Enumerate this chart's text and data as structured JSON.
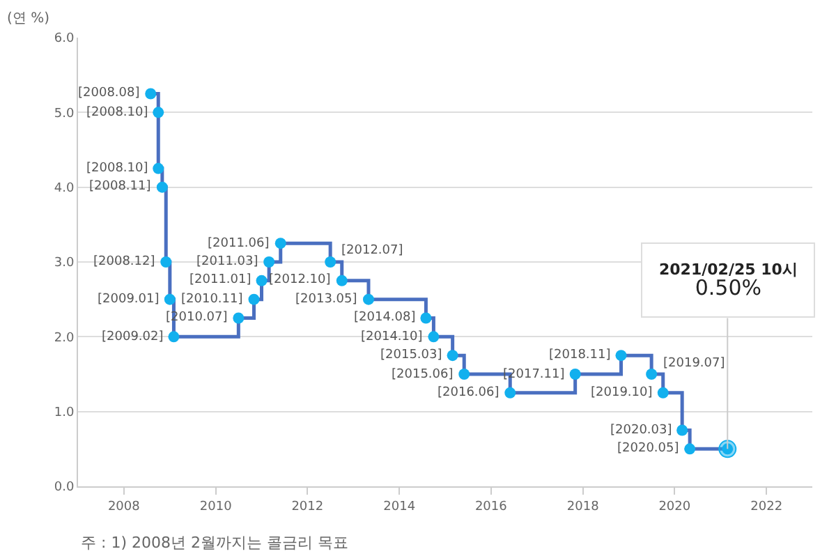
{
  "chart_data": {
    "type": "step",
    "ylabel": "(연 %)",
    "x": [
      "2008-08",
      "2008-10",
      "2008-10",
      "2008-11",
      "2008-12",
      "2009-01",
      "2009-02",
      "2010-07",
      "2010-11",
      "2011-01",
      "2011-03",
      "2011-06",
      "2012-07",
      "2012-10",
      "2013-05",
      "2014-08",
      "2014-10",
      "2015-03",
      "2015-06",
      "2016-06",
      "2017-11",
      "2018-11",
      "2019-07",
      "2019-10",
      "2020-03",
      "2020-05",
      "2021-02-25"
    ],
    "series": [
      {
        "color": "#4a6fc0",
        "colors": [
          "#12b0ee",
          "#12b0ee",
          "#12b0ee",
          "#12b0ee",
          "#12b0ee",
          "#12b0ee",
          "#12b0ee",
          "#12b0ee",
          "#12b0ee",
          "#12b0ee",
          "#12b0ee",
          "#12b0ee",
          "#12b0ee",
          "#12b0ee",
          "#12b0ee",
          "#12b0ee",
          "#12b0ee",
          "#12b0ee",
          "#12b0ee",
          "#12b0ee",
          "#12b0ee",
          "#12b0ee",
          "#12b0ee",
          "#12b0ee",
          "#12b0ee",
          "#12b0ee",
          "#12b0ee"
        ],
        "values": [
          5.25,
          5.0,
          4.25,
          4.0,
          3.0,
          2.5,
          2.0,
          2.25,
          2.5,
          2.75,
          3.0,
          3.25,
          3.0,
          2.75,
          2.5,
          2.25,
          2.0,
          1.75,
          1.5,
          1.25,
          1.5,
          1.75,
          1.5,
          1.25,
          0.75,
          0.5,
          0.5
        ]
      }
    ],
    "xlim": [
      "2007",
      "2023"
    ],
    "xticks": [
      {
        "value": "2008",
        "label": "2008"
      },
      {
        "value": "2010",
        "label": "2010"
      },
      {
        "value": "2012",
        "label": "2012"
      },
      {
        "value": "2014",
        "label": "2014"
      },
      {
        "value": "2016",
        "label": "2016"
      },
      {
        "value": "2018",
        "label": "2018"
      },
      {
        "value": "2020",
        "label": "2020"
      },
      {
        "value": "2022",
        "label": "2022"
      }
    ],
    "ylim": [
      0,
      6
    ],
    "yticks": [
      {
        "value": 0,
        "label": "0.0"
      },
      {
        "value": 1,
        "label": "1.0"
      },
      {
        "value": 2,
        "label": "2.0"
      },
      {
        "value": 3,
        "label": "3.0"
      },
      {
        "value": 4,
        "label": "4.0"
      },
      {
        "value": 5,
        "label": "5.0"
      },
      {
        "value": 6,
        "label": "6.0"
      }
    ],
    "grid": "y",
    "marker": "circle",
    "annotations": [
      {
        "text": "[2008.08]",
        "x": "2008-08",
        "y": 5.25
      },
      {
        "text": "[2008.10]",
        "x": "2008-10",
        "y": 5.0
      },
      {
        "text": "[2008.10]",
        "x": "2008-10",
        "y": 4.25
      },
      {
        "text": "[2008.11]",
        "x": "2008-11",
        "y": 4.0
      },
      {
        "text": "[2008.12]",
        "x": "2008-12",
        "y": 3.0
      },
      {
        "text": "[2009.01]",
        "x": "2009-01",
        "y": 2.5
      },
      {
        "text": "[2009.02]",
        "x": "2009-02",
        "y": 2.0
      },
      {
        "text": "[2010.07]",
        "x": "2010-07",
        "y": 2.25
      },
      {
        "text": "[2010.11]",
        "x": "2010-11",
        "y": 2.5
      },
      {
        "text": "[2011.01]",
        "x": "2011-01",
        "y": 2.75
      },
      {
        "text": "[2011.03]",
        "x": "2011-03",
        "y": 3.0
      },
      {
        "text": "[2011.06]",
        "x": "2011-06",
        "y": 3.25
      },
      {
        "text": "[2012.07]",
        "x": "2012-07",
        "y": 3.0
      },
      {
        "text": "[2012.10]",
        "x": "2012-10",
        "y": 2.75
      },
      {
        "text": "[2013.05]",
        "x": "2013-05",
        "y": 2.5
      },
      {
        "text": "[2014.08]",
        "x": "2014-08",
        "y": 2.25
      },
      {
        "text": "[2014.10]",
        "x": "2014-10",
        "y": 2.0
      },
      {
        "text": "[2015.03]",
        "x": "2015-03",
        "y": 1.75
      },
      {
        "text": "[2015.06]",
        "x": "2015-06",
        "y": 1.5
      },
      {
        "text": "[2016.06]",
        "x": "2016-06",
        "y": 1.25
      },
      {
        "text": "[2017.11]",
        "x": "2017-11",
        "y": 1.5
      },
      {
        "text": "[2018.11]",
        "x": "2018-11",
        "y": 1.75
      },
      {
        "text": "[2019.07]",
        "x": "2019-07",
        "y": 1.5
      },
      {
        "text": "[2019.10]",
        "x": "2019-10",
        "y": 1.25
      },
      {
        "text": "[2020.03]",
        "x": "2020-03",
        "y": 0.75
      },
      {
        "text": "[2020.05]",
        "x": "2020-05",
        "y": 0.5
      },
      {
        "text": "2021/02/25 10시\n0.50%",
        "x": "2021-02-25",
        "y": 0.5
      },
      "주 : 1) 2008년 2월까지는 콜금리 목표"
    ]
  }
}
